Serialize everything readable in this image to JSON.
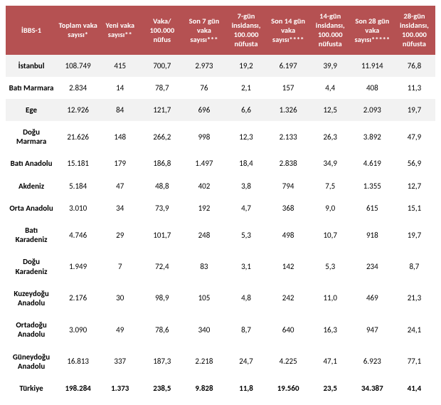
{
  "table": {
    "header_bg": "#b55152",
    "header_fg": "#ffffff",
    "alt_row_bg": "#f2f2f2",
    "columns": [
      "İBBS-1",
      "Toplam vaka sayısı*",
      "Yeni vaka sayısı**",
      "Vaka/ 100.000 nüfus",
      "Son 7 gün vaka sayısı***",
      "7-gün insidansı, 100.000 nüfusta",
      "Son 14 gün vaka sayısı****",
      "14-gün insidansı, 100.000 nüfusta",
      "Son 28 gün vaka sayısı*****",
      "28-gün insidansı, 100.000 nüfusta"
    ],
    "rows": [
      {
        "alt": true,
        "total": false,
        "cells": [
          "İstanbul",
          "108.749",
          "415",
          "700,7",
          "2.973",
          "19,2",
          "6.197",
          "39,9",
          "11.914",
          "76,8"
        ]
      },
      {
        "alt": false,
        "total": false,
        "cells": [
          "Batı Marmara",
          "2.834",
          "14",
          "78,7",
          "76",
          "2,1",
          "157",
          "4,4",
          "408",
          "11,3"
        ]
      },
      {
        "alt": true,
        "total": false,
        "cells": [
          "Ege",
          "12.926",
          "84",
          "121,7",
          "696",
          "6,6",
          "1.326",
          "12,5",
          "2.093",
          "19,7"
        ]
      },
      {
        "alt": false,
        "total": false,
        "cells": [
          "Doğu Marmara",
          "21.626",
          "148",
          "266,2",
          "998",
          "12,3",
          "2.133",
          "26,3",
          "3.892",
          "47,9"
        ]
      },
      {
        "alt": false,
        "total": false,
        "cells": [
          "Batı Anadolu",
          "15.181",
          "179",
          "186,8",
          "1.497",
          "18,4",
          "2.838",
          "34,9",
          "4.619",
          "56,9"
        ]
      },
      {
        "alt": false,
        "total": false,
        "cells": [
          "Akdeniz",
          "5.184",
          "47",
          "48,8",
          "402",
          "3,8",
          "794",
          "7,5",
          "1.355",
          "12,7"
        ]
      },
      {
        "alt": false,
        "total": false,
        "cells": [
          "Orta Anadolu",
          "3.010",
          "34",
          "73,9",
          "192",
          "4,7",
          "368",
          "9,0",
          "615",
          "15,1"
        ]
      },
      {
        "alt": false,
        "total": false,
        "cells": [
          "Batı Karadeniz",
          "4.746",
          "29",
          "101,7",
          "248",
          "5,3",
          "498",
          "10,7",
          "918",
          "19,7"
        ]
      },
      {
        "alt": false,
        "total": false,
        "cells": [
          "Doğu Karadeniz",
          "1.949",
          "7",
          "72,4",
          "83",
          "3,1",
          "142",
          "5,3",
          "234",
          "8,7"
        ]
      },
      {
        "alt": false,
        "total": false,
        "cells": [
          "Kuzeydoğu Anadolu",
          "2.176",
          "30",
          "98,9",
          "105",
          "4,8",
          "242",
          "11,0",
          "469",
          "21,3"
        ]
      },
      {
        "alt": false,
        "total": false,
        "cells": [
          "Ortadoğu Anadolu",
          "3.090",
          "49",
          "78,6",
          "340",
          "8,7",
          "640",
          "16,3",
          "947",
          "24,1"
        ]
      },
      {
        "alt": false,
        "total": false,
        "cells": [
          "Güneydoğu Anadolu",
          "16.813",
          "337",
          "187,3",
          "2.218",
          "24,7",
          "4.225",
          "47,1",
          "6.923",
          "77,1"
        ]
      },
      {
        "alt": false,
        "total": true,
        "cells": [
          "Türkiye",
          "198.284",
          "1.373",
          "238,5",
          "9.828",
          "11,8",
          "19.560",
          "23,5",
          "34.387",
          "41,4"
        ]
      }
    ]
  }
}
